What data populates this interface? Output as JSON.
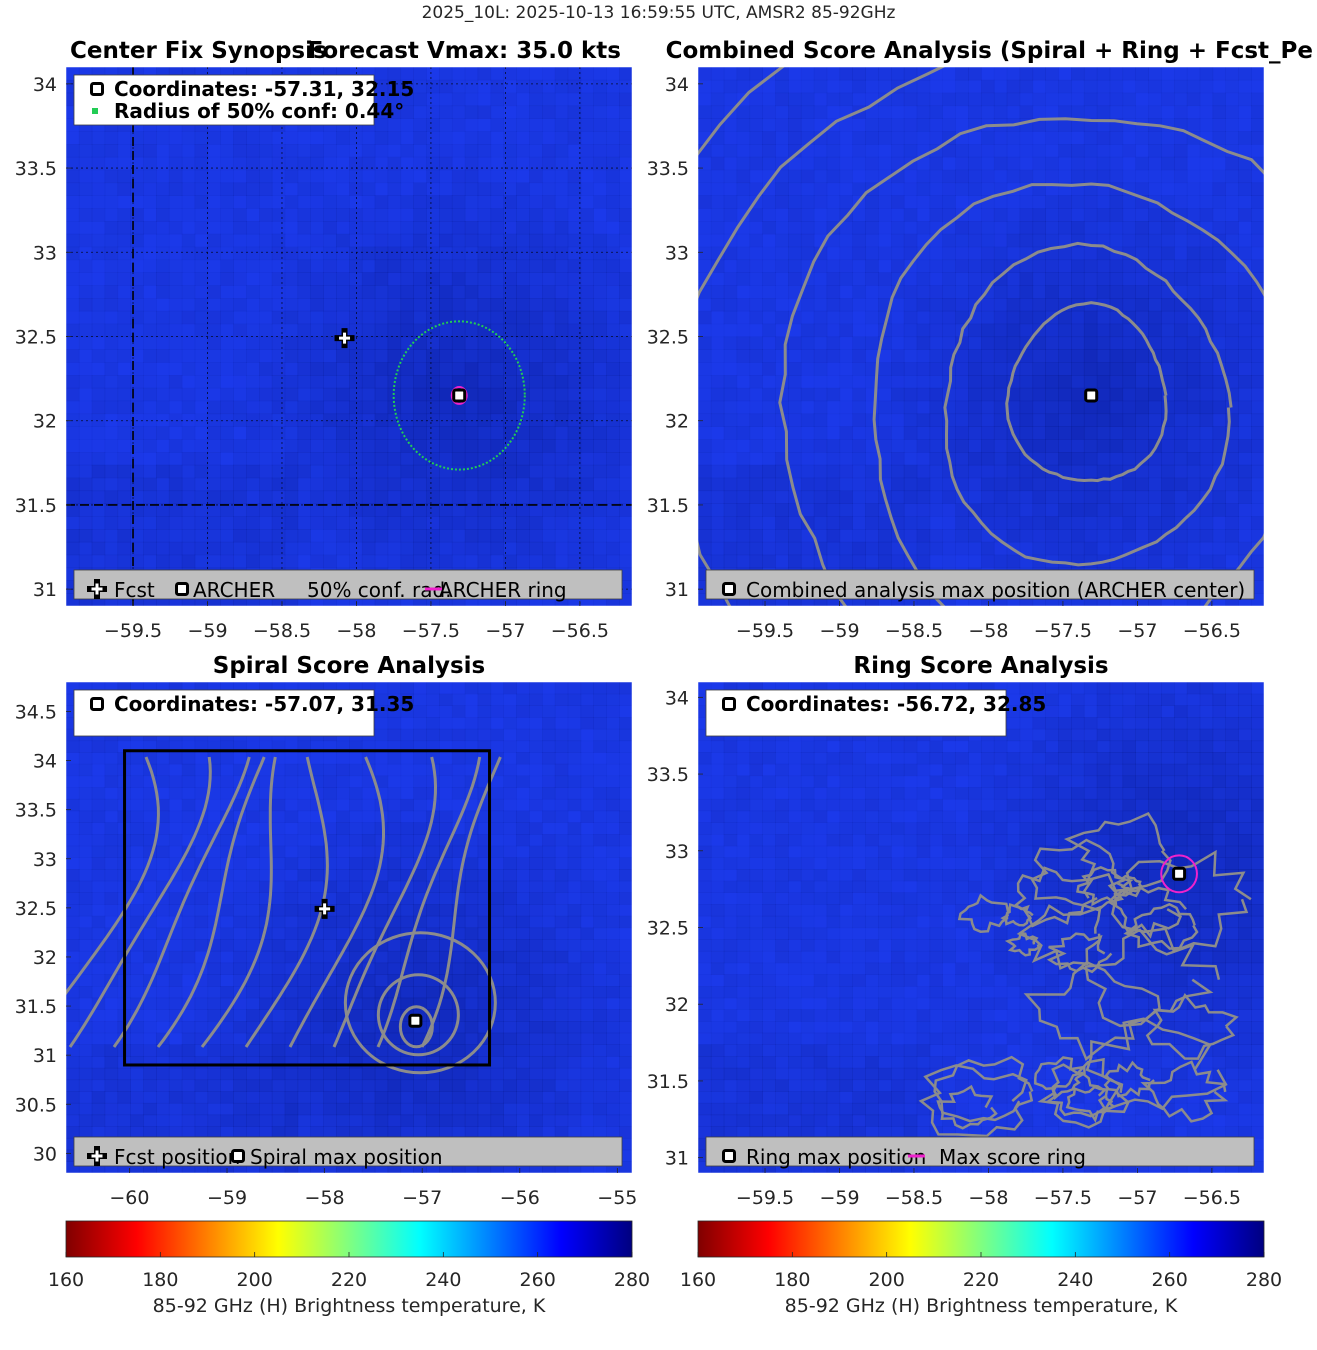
{
  "figure": {
    "title": "2025_10L: 2025-10-13 16:59:55 UTC, AMSR2 85-92GHz"
  },
  "colors": {
    "field_base": "#1d3cf0",
    "field_dark": "#0b1f9c",
    "contour": "#8c8c8c",
    "legend_bg": "#bfbfbf",
    "conf_circle": "#22cc55",
    "ring": "#ee22cc",
    "box": "#000000"
  },
  "chart_data": [
    {
      "type": "heatmap",
      "id": "synopsis",
      "title_left": "Center Fix Synopsis",
      "title_right": "Forecast Vmax: 35.0 kts",
      "xlim": [
        -59.95,
        -56.15
      ],
      "ylim": [
        30.9,
        34.1
      ],
      "xticks": [
        -59.5,
        -59,
        -58.5,
        -58,
        -57.5,
        -57,
        -56.5
      ],
      "yticks": [
        31,
        31.5,
        32,
        32.5,
        33,
        33.5,
        34
      ],
      "grid_x": [
        -59.5,
        -59,
        -58.5,
        -58,
        -57.5,
        -57,
        -56.5
      ],
      "grid_y": [
        31,
        31.5,
        32,
        32.5,
        33,
        33.5,
        34
      ],
      "dashed_x": -59.5,
      "dashed_y": 31.5,
      "info_box": {
        "coordinates": "Coordinates: -57.31, 32.15",
        "radius": "Radius of 50% conf: 0.44°"
      },
      "forecast_marker": {
        "lon": -58.08,
        "lat": 32.49
      },
      "center": {
        "lon": -57.31,
        "lat": 32.15
      },
      "confidence_radius_deg": 0.44,
      "ring_radius_deg": 0.05,
      "legend": [
        "Fcst",
        "ARCHER",
        "50% conf. rad.",
        "ARCHER ring"
      ]
    },
    {
      "type": "heatmap",
      "id": "combined",
      "title": "Combined Score Analysis (Spiral + Ring + Fcst_Pe",
      "xlim": [
        -59.95,
        -56.15
      ],
      "ylim": [
        30.9,
        34.1
      ],
      "xticks": [
        -59.5,
        -59,
        -58.5,
        -58,
        -57.5,
        -57,
        -56.5
      ],
      "yticks": [
        31,
        31.5,
        32,
        32.5,
        33,
        33.5,
        34
      ],
      "center": {
        "lon": -57.31,
        "lat": 32.15
      },
      "contour_radii_deg": [
        0.5,
        0.9,
        1.35,
        1.85,
        2.4,
        3.0
      ],
      "legend": [
        "Combined analysis max position (ARCHER center)"
      ]
    },
    {
      "type": "heatmap",
      "id": "spiral",
      "title": "Spiral Score Analysis",
      "xlim": [
        -60.65,
        -54.85
      ],
      "ylim": [
        29.8,
        34.8
      ],
      "xticks": [
        -60,
        -59,
        -58,
        -57,
        -56,
        -55
      ],
      "yticks": [
        30,
        30.5,
        31,
        31.5,
        32,
        32.5,
        33,
        33.5,
        34,
        34.5
      ],
      "info_box": {
        "coordinates": "Coordinates: -57.07, 31.35"
      },
      "forecast_marker": {
        "lon": -58.0,
        "lat": 32.49
      },
      "center": {
        "lon": -57.07,
        "lat": 31.35
      },
      "search_box": {
        "lon_min": -60.05,
        "lon_max": -56.31,
        "lat_min": 30.9,
        "lat_max": 34.1
      },
      "legend": [
        "Fcst position",
        "Spiral max position"
      ]
    },
    {
      "type": "heatmap",
      "id": "ring",
      "title": "Ring Score Analysis",
      "xlim": [
        -59.95,
        -56.15
      ],
      "ylim": [
        30.9,
        34.1
      ],
      "xticks": [
        -59.5,
        -59,
        -58.5,
        -58,
        -57.5,
        -57,
        -56.5
      ],
      "yticks": [
        31,
        31.5,
        32,
        32.5,
        33,
        33.5,
        34
      ],
      "info_box": {
        "coordinates": "Coordinates: -56.72, 32.85"
      },
      "center": {
        "lon": -56.72,
        "lat": 32.85
      },
      "ring_radius_deg": 0.12,
      "legend": [
        "Ring max position",
        "Max score ring"
      ]
    },
    {
      "type": "colorbar",
      "id": "colorbar",
      "range": [
        160,
        280
      ],
      "ticks": [
        160,
        180,
        200,
        220,
        240,
        260,
        280
      ],
      "label": "85-92 GHz (H) Brightness temperature, K",
      "colormap": [
        "#800000",
        "#ff0000",
        "#ff8000",
        "#ffff00",
        "#80ff80",
        "#00ffff",
        "#0080ff",
        "#0000ff",
        "#000080"
      ]
    }
  ]
}
